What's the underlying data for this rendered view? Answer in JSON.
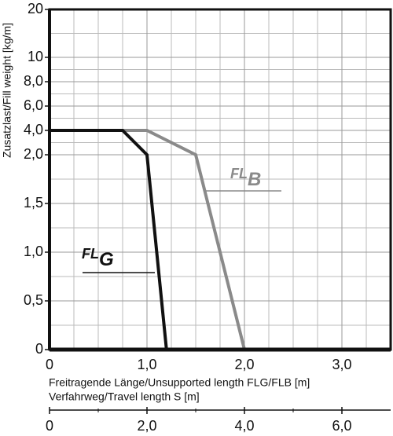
{
  "chart_data": {
    "type": "line",
    "ylabel": "Zusatzlast/Fill weight [kg/m]",
    "xlabel": "Freitragende Länge/Unsupported length FLG/FLB [m]",
    "x2label": "Verfahrweg/Travel length S [m]",
    "xlim": [
      0,
      3.5
    ],
    "xticks": [
      0,
      {
        "value": 1,
        "label": "1,0"
      },
      {
        "value": 2,
        "label": "2,0"
      },
      {
        "value": 3,
        "label": "3,0"
      }
    ],
    "x2lim": [
      0,
      7
    ],
    "x2ticks": [
      0,
      {
        "value": 2,
        "label": "2,0"
      },
      {
        "value": 4,
        "label": "4,0"
      },
      {
        "value": 6,
        "label": "6,0"
      }
    ],
    "ylim": [
      0,
      20
    ],
    "yticks": [
      0,
      {
        "value": 0.5,
        "label": "0,5"
      },
      {
        "value": 1,
        "label": "1,0"
      },
      {
        "value": 1.5,
        "label": "1,5"
      },
      {
        "value": 2,
        "label": "2,0"
      },
      {
        "value": 4,
        "label": "4,0"
      },
      {
        "value": 6,
        "label": "6,0"
      },
      {
        "value": 8,
        "label": "8,0"
      },
      10,
      20
    ],
    "grid": true,
    "series": [
      {
        "name": "FL",
        "subscript": "B",
        "color": "#8a8a8a",
        "x": [
          0,
          1.0,
          1.5,
          2.0
        ],
        "values": [
          4,
          4,
          2,
          0
        ]
      },
      {
        "name": "FL",
        "subscript": "G",
        "color": "#111111",
        "x": [
          0,
          0.75,
          1.0,
          1.2
        ],
        "values": [
          4,
          4,
          2,
          0
        ]
      }
    ]
  }
}
